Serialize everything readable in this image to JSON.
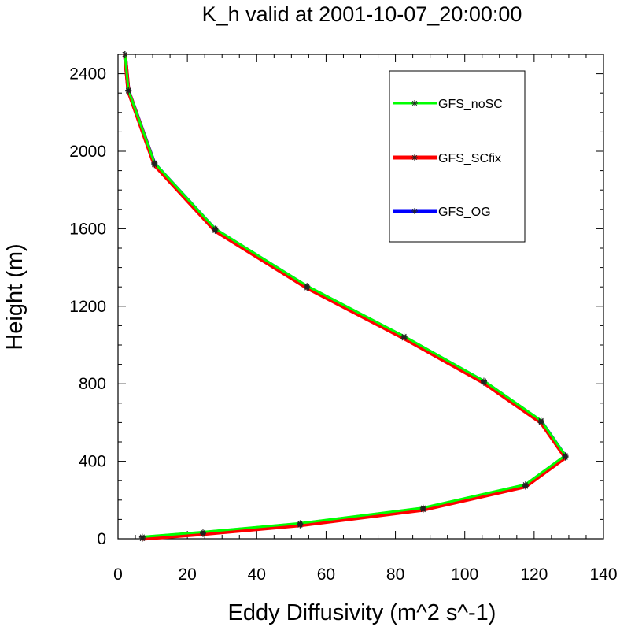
{
  "chart_data": {
    "type": "line",
    "title": "K_h valid at 2001-10-07_20:00:00",
    "xlabel": "Eddy Diffusivity (m^2 s^-1)",
    "ylabel": "Height (m)",
    "xlim": [
      0,
      140
    ],
    "ylim": [
      0,
      2500
    ],
    "xticks": [
      0,
      20,
      40,
      60,
      80,
      100,
      120,
      140
    ],
    "yticks": [
      0,
      400,
      800,
      1200,
      1600,
      2000,
      2400
    ],
    "xtick_labels": [
      "0",
      "20",
      "40",
      "60",
      "80",
      "100",
      "120",
      "140"
    ],
    "ytick_labels": [
      "0",
      "400",
      "800",
      "1200",
      "1600",
      "2000",
      "2400"
    ],
    "grid": false,
    "legend_position": "top-right",
    "marker": "asterisk",
    "series": [
      {
        "name": "GFS_noSC",
        "color": "#00ff00",
        "x": [
          7,
          24.5,
          52.5,
          88,
          117.5,
          129,
          122,
          105.5,
          82.5,
          54.5,
          28,
          10.5,
          3,
          2
        ],
        "y": [
          10,
          35,
          80,
          160,
          280,
          430,
          610,
          815,
          1045,
          1305,
          1600,
          1940,
          2315,
          2500
        ]
      },
      {
        "name": "GFS_SCfix",
        "color": "#ff0000",
        "x": [
          7,
          24.5,
          52.5,
          88,
          117.5,
          129,
          122,
          105.5,
          82.5,
          54.5,
          28,
          10.5,
          3,
          2
        ],
        "y": [
          0,
          25,
          70,
          150,
          270,
          420,
          600,
          805,
          1035,
          1295,
          1590,
          1930,
          2310,
          2500
        ]
      },
      {
        "name": "GFS_OG",
        "color": "#0000ff",
        "x": [
          7,
          24.5,
          52.5,
          88,
          117.5,
          129,
          122,
          105.5,
          82.5,
          54.5,
          28,
          10.5,
          3,
          2
        ],
        "y": [
          5,
          30,
          75,
          155,
          275,
          425,
          605,
          810,
          1040,
          1300,
          1595,
          1935,
          2312,
          2500
        ]
      }
    ]
  }
}
